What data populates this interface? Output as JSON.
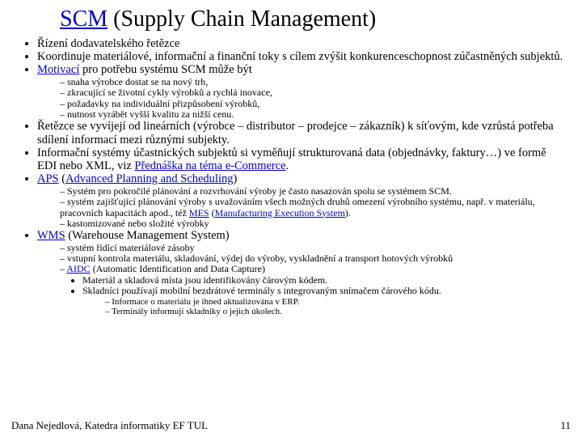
{
  "title_link": "SCM",
  "title_rest": " (Supply Chain Management)",
  "b1": "Řízení dodavatelského řetězce",
  "b2": "Koordinuje materiálové, informační a finanční toky s cílem zvýšit konkurenceschopnost zúčastněných subjektů.",
  "b3_link": "Motivací",
  "b3_rest": " pro potřebu systému SCM může být",
  "b3_sub1": "snaha výrobce dostat se na nový trh,",
  "b3_sub2": "zkracující se životní cykly výrobků a rychlá inovace,",
  "b3_sub3": "požadavky na individuální přizpůsobení výrobků,",
  "b3_sub4": "nutnost vyrábět vyšší kvalitu za nižší cenu.",
  "b4": "Řetězce se vyvíjejí od lineárních (výrobce – distributor – prodejce – zákazník) k síťovým, kde vzrůstá potřeba sdílení informací mezi různými subjekty.",
  "b5_a": "Informační systémy účastnických subjektů si vyměňují strukturovaná data (objednávky, faktury…) ve formě EDI nebo XML, viz ",
  "b5_link": "Přednáška na téma e-Commerce",
  "b5_b": ".",
  "b6_link": "APS",
  "b6_rest_a": " (",
  "b6_rest_link": "Advanced Planning and Scheduling",
  "b6_rest_b": ")",
  "b6_sub1": "Systém pro pokročilé plánování a rozvrhování výroby je často nasazován spolu se systémem SCM.",
  "b6_sub2_a": "systém zajišťující plánování výroby s uvažováním všech možných druhů omezení výrobního systému, např. v materiálu, pracovních kapacitách apod., též ",
  "b6_sub2_link1": "MES",
  "b6_sub2_mid": " (",
  "b6_sub2_link2": "Manufacturing Execution System",
  "b6_sub2_b": ").",
  "b6_sub3": "kastomizované nebo složité výrobky",
  "b7_link": "WMS",
  "b7_rest": " (Warehouse Management System)",
  "b7_sub1": "systém řídící materiálové zásoby",
  "b7_sub2": "vstupní kontrola materiálu, skladování, výdej do výroby, vyskladnění a transport hotových výrobků",
  "b7_sub3_link": "AIDC",
  "b7_sub3_rest": " (Automatic Identification and Data Capture)",
  "b7_sub3_b1": "Materiál a skladová místa jsou identifikovány čárovým kódem.",
  "b7_sub3_b2": "Skladníci používají mobilní bezdrátové terminály s integrovaným snímačem čárového kódu.",
  "b7_sub3_b2_s1": "Informace o materiálu je ihned aktualizována v ERP.",
  "b7_sub3_b2_s2": "Terminály informují skladníky o jejich úkolech.",
  "footer": "Dana Nejedlová, Katedra informatiky EF TUL",
  "pageno": "11",
  "colors": {
    "link": "#0000cc",
    "text": "#000000",
    "bg": "#ffffff"
  }
}
